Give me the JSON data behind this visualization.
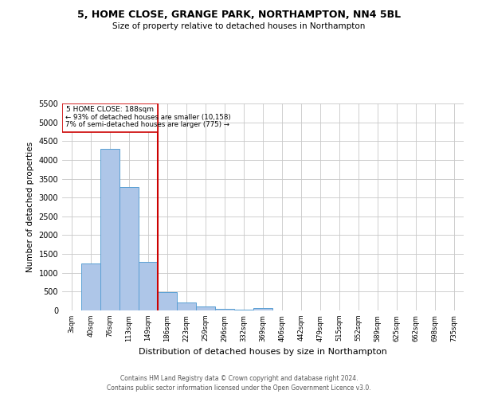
{
  "title": "5, HOME CLOSE, GRANGE PARK, NORTHAMPTON, NN4 5BL",
  "subtitle": "Size of property relative to detached houses in Northampton",
  "xlabel": "Distribution of detached houses by size in Northampton",
  "ylabel": "Number of detached properties",
  "footer_line1": "Contains HM Land Registry data © Crown copyright and database right 2024.",
  "footer_line2": "Contains public sector information licensed under the Open Government Licence v3.0.",
  "annotation_line1": "5 HOME CLOSE: 188sqm",
  "annotation_line2": "← 93% of detached houses are smaller (10,158)",
  "annotation_line3": "7% of semi-detached houses are larger (775) →",
  "bar_color": "#aec6e8",
  "bar_edgecolor": "#5a9fd4",
  "vline_color": "#cc0000",
  "vline_bin_index": 5,
  "categories": [
    "3sqm",
    "40sqm",
    "76sqm",
    "113sqm",
    "149sqm",
    "186sqm",
    "223sqm",
    "259sqm",
    "296sqm",
    "332sqm",
    "369sqm",
    "406sqm",
    "442sqm",
    "479sqm",
    "515sqm",
    "552sqm",
    "589sqm",
    "625sqm",
    "662sqm",
    "698sqm",
    "735sqm"
  ],
  "values": [
    0,
    1250,
    4300,
    3280,
    1300,
    480,
    215,
    100,
    50,
    30,
    70,
    0,
    0,
    0,
    0,
    0,
    0,
    0,
    0,
    0,
    0
  ],
  "ylim": [
    0,
    5500
  ],
  "yticks": [
    0,
    500,
    1000,
    1500,
    2000,
    2500,
    3000,
    3500,
    4000,
    4500,
    5000,
    5500
  ],
  "grid_color": "#c8c8c8",
  "background_color": "#ffffff",
  "fig_width": 6.0,
  "fig_height": 5.0,
  "dpi": 100
}
